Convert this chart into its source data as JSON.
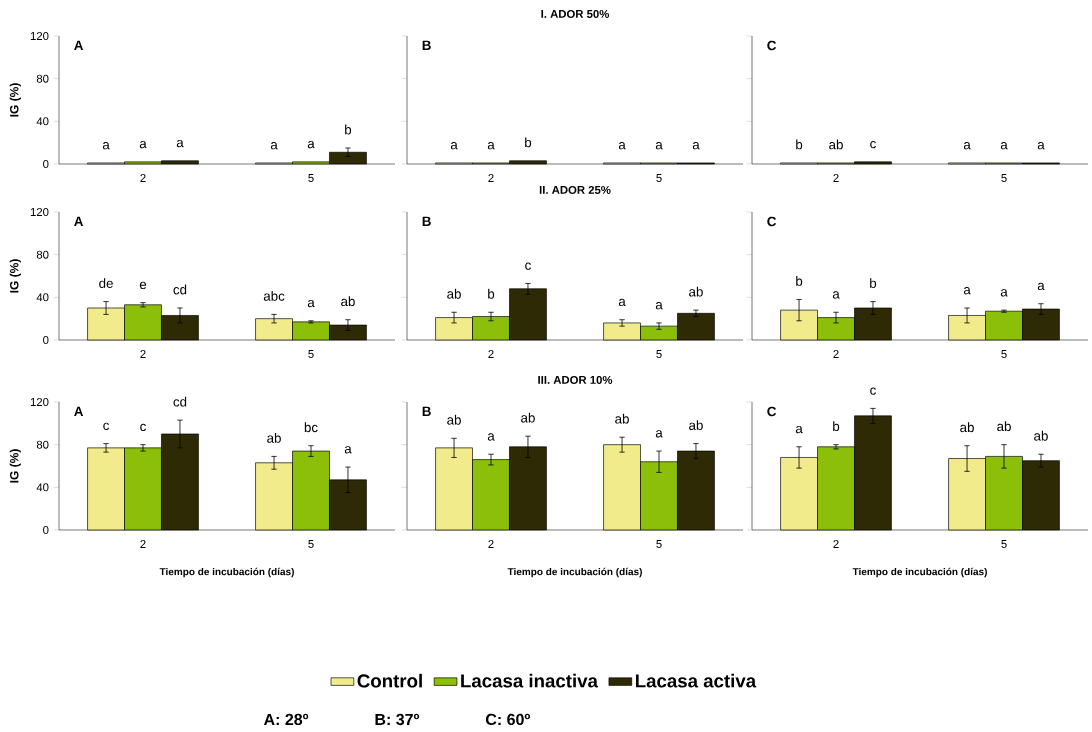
{
  "chart_data": [
    {
      "type": "bar",
      "annotations": [
        "A"
      ],
      "ylabel": "IG (%)",
      "categories": [
        "2",
        "5"
      ],
      "ylim": [
        0,
        120
      ],
      "yticks": [
        0,
        40,
        80,
        120
      ],
      "series": [
        {
          "color": "#f2eb8c",
          "values": [
            1,
            1
          ],
          "errors": [
            null,
            null
          ],
          "value_labels": [
            "a",
            "a"
          ]
        },
        {
          "color": "#8cbf0a",
          "values": [
            2,
            2
          ],
          "errors": [
            null,
            null
          ],
          "value_labels": [
            "a",
            "a"
          ]
        },
        {
          "color": "#2f2a06",
          "values": [
            3,
            11
          ],
          "errors": [
            null,
            4
          ],
          "value_labels": [
            "a",
            "b"
          ]
        }
      ]
    },
    {
      "type": "bar",
      "title": "I. ADOR 50%",
      "annotations": [
        "B"
      ],
      "categories": [
        "2",
        "5"
      ],
      "ylim": [
        0,
        120
      ],
      "yticks": [
        0,
        40,
        80,
        120
      ],
      "tick_labels": "x",
      "series": [
        {
          "color": "#f2eb8c",
          "values": [
            1,
            1
          ],
          "errors": [
            null,
            null
          ],
          "value_labels": [
            "a",
            "a"
          ]
        },
        {
          "color": "#8cbf0a",
          "values": [
            1,
            1
          ],
          "errors": [
            null,
            null
          ],
          "value_labels": [
            "a",
            "a"
          ]
        },
        {
          "color": "#2f2a06",
          "values": [
            3,
            1
          ],
          "errors": [
            null,
            null
          ],
          "value_labels": [
            "b",
            "a"
          ]
        }
      ]
    },
    {
      "type": "bar",
      "annotations": [
        "C"
      ],
      "categories": [
        "2",
        "5"
      ],
      "ylim": [
        0,
        120
      ],
      "yticks": [
        0,
        40,
        80,
        120
      ],
      "tick_labels": "x",
      "series": [
        {
          "color": "#f2eb8c",
          "values": [
            1,
            1
          ],
          "errors": [
            null,
            null
          ],
          "value_labels": [
            "b",
            "a"
          ]
        },
        {
          "color": "#8cbf0a",
          "values": [
            1,
            1
          ],
          "errors": [
            null,
            null
          ],
          "value_labels": [
            "ab",
            "a"
          ]
        },
        {
          "color": "#2f2a06",
          "values": [
            2,
            1
          ],
          "errors": [
            null,
            null
          ],
          "value_labels": [
            "c",
            "a"
          ]
        }
      ]
    },
    {
      "type": "bar",
      "annotations": [
        "A"
      ],
      "ylabel": "IG (%)",
      "categories": [
        "2",
        "5"
      ],
      "ylim": [
        0,
        120
      ],
      "yticks": [
        0,
        40,
        80,
        120
      ],
      "series": [
        {
          "color": "#f2eb8c",
          "values": [
            30,
            20
          ],
          "errors": [
            6,
            4
          ],
          "value_labels": [
            "de",
            "abc"
          ]
        },
        {
          "color": "#8cbf0a",
          "values": [
            33,
            17
          ],
          "errors": [
            2,
            1
          ],
          "value_labels": [
            "e",
            "a"
          ]
        },
        {
          "color": "#2f2a06",
          "values": [
            23,
            14
          ],
          "errors": [
            7,
            5
          ],
          "value_labels": [
            "cd",
            "ab"
          ]
        }
      ]
    },
    {
      "type": "bar",
      "title": "II. ADOR 25%",
      "annotations": [
        "B"
      ],
      "categories": [
        "2",
        "5"
      ],
      "ylim": [
        0,
        120
      ],
      "yticks": [
        0,
        40,
        80,
        120
      ],
      "tick_labels": "x",
      "series": [
        {
          "color": "#f2eb8c",
          "values": [
            21,
            16
          ],
          "errors": [
            5,
            3
          ],
          "value_labels": [
            "ab",
            "a"
          ]
        },
        {
          "color": "#8cbf0a",
          "values": [
            22,
            13
          ],
          "errors": [
            4,
            3
          ],
          "value_labels": [
            "b",
            "a"
          ]
        },
        {
          "color": "#2f2a06",
          "values": [
            48,
            25
          ],
          "errors": [
            5,
            3
          ],
          "value_labels": [
            "c",
            "ab"
          ]
        }
      ]
    },
    {
      "type": "bar",
      "annotations": [
        "C"
      ],
      "categories": [
        "2",
        "5"
      ],
      "ylim": [
        0,
        120
      ],
      "yticks": [
        0,
        40,
        80,
        120
      ],
      "tick_labels": "x",
      "series": [
        {
          "color": "#f2eb8c",
          "values": [
            28,
            23
          ],
          "errors": [
            10,
            7
          ],
          "value_labels": [
            "b",
            "a"
          ]
        },
        {
          "color": "#8cbf0a",
          "values": [
            21,
            27
          ],
          "errors": [
            5,
            1
          ],
          "value_labels": [
            "a",
            "a"
          ]
        },
        {
          "color": "#2f2a06",
          "values": [
            30,
            29
          ],
          "errors": [
            6,
            5
          ],
          "value_labels": [
            "b",
            "a"
          ]
        }
      ]
    },
    {
      "type": "bar",
      "annotations": [
        "A"
      ],
      "ylabel": "IG (%)",
      "xlabel": "Tiempo de incubación (días)",
      "categories": [
        "2",
        "5"
      ],
      "ylim": [
        0,
        120
      ],
      "yticks": [
        0,
        40,
        80,
        120
      ],
      "series": [
        {
          "color": "#f2eb8c",
          "values": [
            77,
            63
          ],
          "errors": [
            4,
            6
          ],
          "value_labels": [
            "c",
            "ab"
          ]
        },
        {
          "color": "#8cbf0a",
          "values": [
            77,
            74
          ],
          "errors": [
            3,
            5
          ],
          "value_labels": [
            "c",
            "bc"
          ]
        },
        {
          "color": "#2f2a06",
          "values": [
            90,
            47
          ],
          "errors": [
            13,
            12
          ],
          "value_labels": [
            "cd",
            "a"
          ]
        }
      ]
    },
    {
      "type": "bar",
      "title": "III. ADOR 10%",
      "annotations": [
        "B",
        "A: 28º",
        "B: 37º",
        "C: 60º"
      ],
      "xlabel": "Tiempo de incubación (días)",
      "categories": [
        "2",
        "5"
      ],
      "ylim": [
        0,
        120
      ],
      "yticks": [
        0,
        40,
        80,
        120
      ],
      "tick_labels": "x",
      "legend": "bottom",
      "series": [
        {
          "name": "Control",
          "color": "#f2eb8c",
          "values": [
            77,
            80
          ],
          "errors": [
            9,
            7
          ],
          "value_labels": [
            "ab",
            "ab"
          ]
        },
        {
          "name": "Lacasa inactiva",
          "color": "#8cbf0a",
          "values": [
            66,
            64
          ],
          "errors": [
            5,
            10
          ],
          "value_labels": [
            "a",
            "a"
          ]
        },
        {
          "name": "Lacasa activa",
          "color": "#2f2a06",
          "values": [
            78,
            74
          ],
          "errors": [
            10,
            7
          ],
          "value_labels": [
            "ab",
            "ab"
          ]
        }
      ]
    },
    {
      "type": "bar",
      "annotations": [
        "C"
      ],
      "xlabel": "Tiempo de incubación (días)",
      "categories": [
        "2",
        "5"
      ],
      "ylim": [
        0,
        120
      ],
      "yticks": [
        0,
        40,
        80,
        120
      ],
      "tick_labels": "x",
      "series": [
        {
          "color": "#f2eb8c",
          "values": [
            68,
            67
          ],
          "errors": [
            10,
            12
          ],
          "value_labels": [
            "a",
            "ab"
          ]
        },
        {
          "color": "#8cbf0a",
          "values": [
            78,
            69
          ],
          "errors": [
            2,
            11
          ],
          "value_labels": [
            "b",
            "ab"
          ]
        },
        {
          "color": "#2f2a06",
          "values": [
            107,
            65
          ],
          "errors": [
            7,
            6
          ],
          "value_labels": [
            "c",
            "ab"
          ]
        }
      ]
    }
  ]
}
